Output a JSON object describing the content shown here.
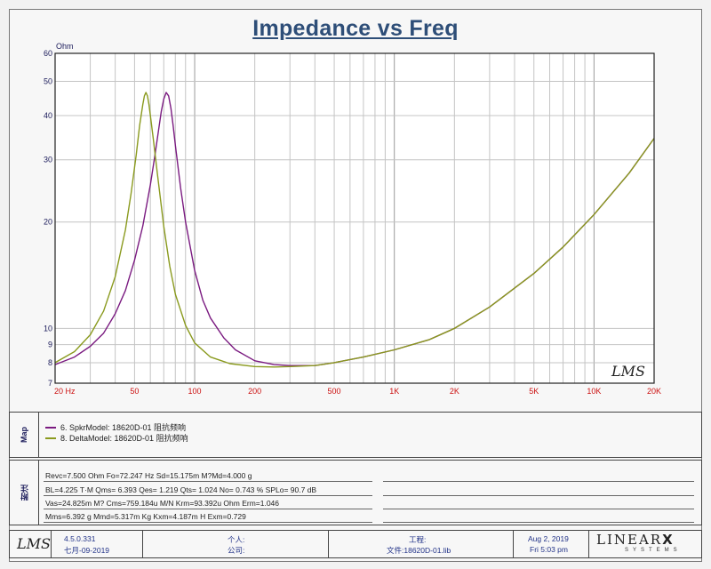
{
  "chart_data": {
    "type": "line",
    "title": "Impedance vs Freq",
    "ylabel": "Ohm",
    "xscale": "log",
    "yscale": "log",
    "xlim": [
      20,
      20000
    ],
    "ylim": [
      7,
      60
    ],
    "x_tick_labels": [
      "20 Hz",
      "50",
      "100",
      "200",
      "500",
      "1K",
      "2K",
      "5K",
      "10K",
      "20K"
    ],
    "x_tick_values": [
      20,
      50,
      100,
      200,
      500,
      1000,
      2000,
      5000,
      10000,
      20000
    ],
    "y_tick_labels": [
      "7",
      "8",
      "9",
      "10",
      "20",
      "30",
      "40",
      "50",
      "60"
    ],
    "y_tick_values": [
      7,
      8,
      9,
      10,
      20,
      30,
      40,
      50,
      60
    ],
    "grid": true,
    "series": [
      {
        "name": "6. SpkrModel: 18620D-01 阻抗频响",
        "color": "#7a1a80",
        "x": [
          20,
          25,
          30,
          35,
          40,
          45,
          50,
          55,
          60,
          63,
          66,
          68,
          70,
          72,
          74,
          76,
          78,
          80,
          85,
          90,
          100,
          110,
          120,
          140,
          160,
          200,
          250,
          300,
          400,
          500,
          700,
          1000,
          1500,
          2000,
          3000,
          5000,
          7000,
          10000,
          15000,
          20000
        ],
        "y": [
          7.9,
          8.3,
          8.9,
          9.7,
          11.0,
          12.8,
          15.6,
          19.5,
          25.5,
          30.5,
          36.5,
          41.0,
          44.5,
          46.5,
          45.5,
          42.0,
          37.5,
          33.0,
          25.0,
          20.0,
          14.6,
          12.0,
          10.7,
          9.4,
          8.7,
          8.1,
          7.9,
          7.85,
          7.85,
          8.0,
          8.3,
          8.7,
          9.3,
          10.0,
          11.5,
          14.3,
          17.0,
          21.0,
          27.5,
          34.5
        ]
      },
      {
        "name": "8. DeltaModel: 18620D-01 阻抗频响",
        "color": "#8a9a1e",
        "x": [
          20,
          25,
          30,
          35,
          40,
          45,
          48,
          51,
          53,
          55,
          56,
          57,
          58,
          59,
          60,
          62,
          65,
          70,
          75,
          80,
          90,
          100,
          120,
          150,
          200,
          250,
          300,
          400,
          500,
          700,
          1000,
          1500,
          2000,
          3000,
          5000,
          7000,
          10000,
          15000,
          20000
        ],
        "y": [
          8.0,
          8.6,
          9.6,
          11.2,
          14.0,
          19.0,
          24.0,
          31.0,
          37.5,
          43.0,
          45.5,
          46.5,
          45.5,
          43.0,
          40.0,
          34.5,
          27.5,
          19.5,
          15.0,
          12.5,
          10.2,
          9.1,
          8.3,
          7.95,
          7.8,
          7.78,
          7.8,
          7.85,
          8.0,
          8.3,
          8.7,
          9.3,
          10.0,
          11.5,
          14.3,
          17.0,
          21.0,
          27.5,
          34.5
        ]
      }
    ]
  },
  "watermark": "LMS",
  "map_label": "Map",
  "legend": [
    {
      "text": "6. SpkrModel: 18620D-01  阻抗频响",
      "color": "#7a1a80"
    },
    {
      "text": "8. DeltaModel: 18620D-01  阻抗频响",
      "color": "#8a9a1e"
    }
  ],
  "params_label": "附注",
  "params": [
    "Revc=7.500 Ohm  Fo=72.247 Hz  Sd=15.175m M?Md=4.000 g",
    "BL=4.225 T·M  Qms= 6.393  Qes= 1.219  Qts= 1.024  No= 0.743 %  SPLo= 90.7 dB",
    "Vas=24.825m M?  Cms=759.184u M/N  Krm=93.392u Ohm  Erm=1.046",
    "Mms=6.392 g  Mmd=5.317m Kg  Kxm=4.187m H  Exm=0.729"
  ],
  "footer": {
    "logo": "LMS",
    "version": "4.5.0.331",
    "date_release": "七月-09-2019",
    "personal_label": "个人:",
    "company_label": "公司:",
    "project_label": "工程:",
    "file_label": "文件:18620D-01.lib",
    "date": "Aug  2, 2019",
    "time": "Fri  5:03 pm",
    "brand_main": "LINEAR",
    "brand_x": "X",
    "brand_sub": "SYSTEMS"
  }
}
